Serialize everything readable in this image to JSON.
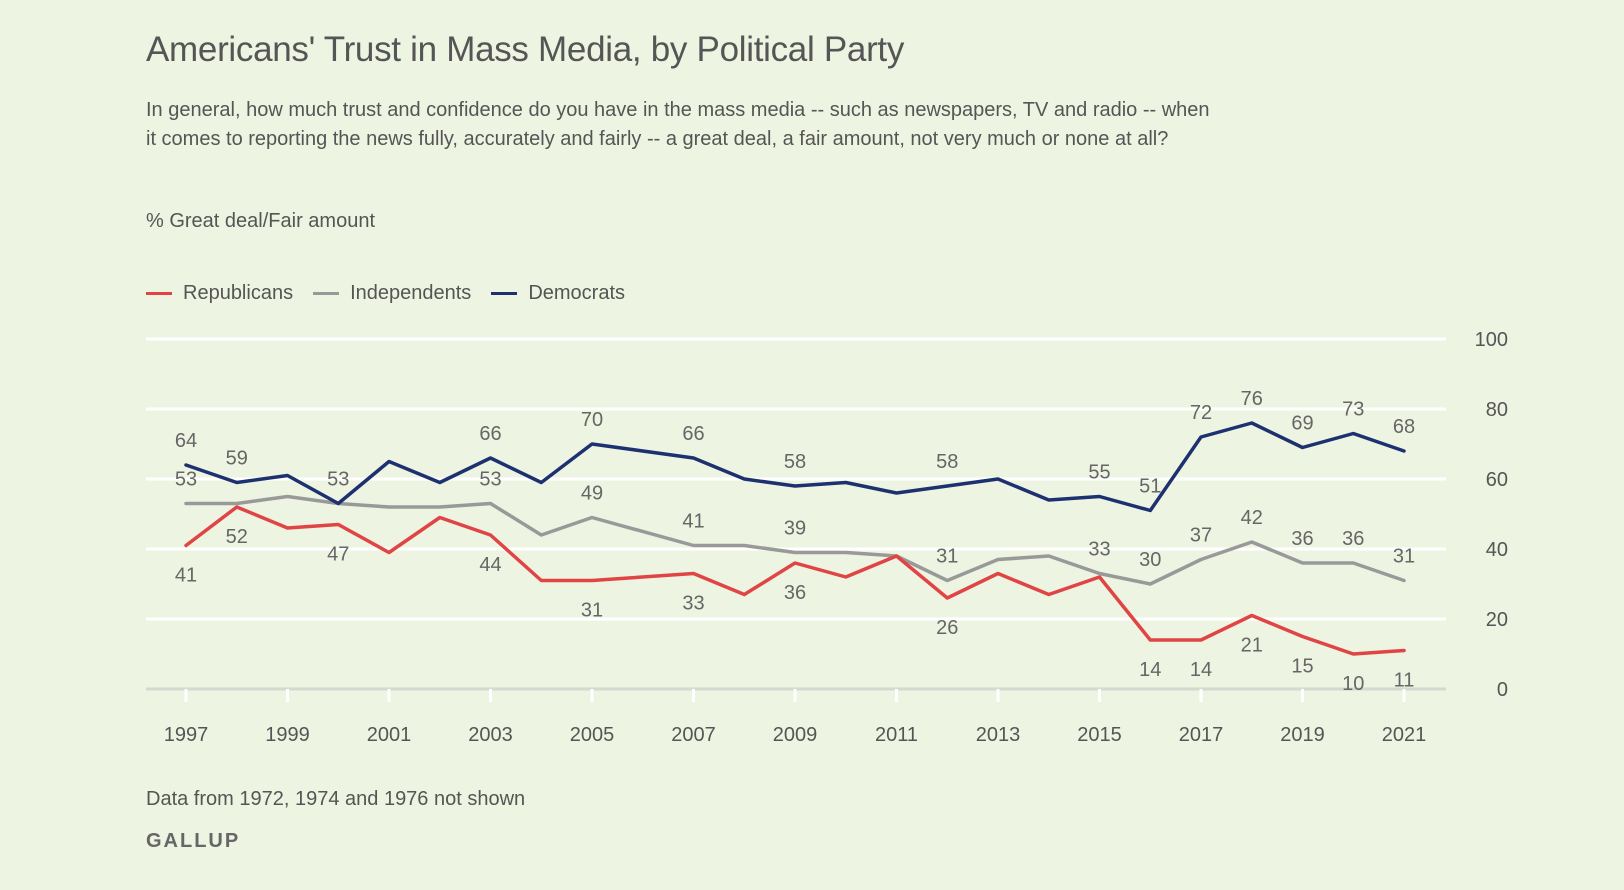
{
  "header": {
    "title": "Americans' Trust in Mass Media, by Political Party",
    "subtitle": "In general, how much trust and confidence do you have in the mass media -- such as newspapers, TV and radio -- when it comes to reporting the news fully, accurately and fairly -- a great deal, a fair amount, not very much or none at all?",
    "measure": "% Great deal/Fair amount"
  },
  "footer": {
    "note": "Data from 1972, 1974 and 1976 not shown",
    "brand": "GALLUP"
  },
  "chart_data": {
    "type": "line",
    "title": "Americans' Trust in Mass Media, by Political Party",
    "xlabel": "",
    "ylabel": "% Great deal/Fair amount",
    "x": [
      1997,
      1998,
      1999,
      2000,
      2001,
      2002,
      2003,
      2004,
      2005,
      2007,
      2008,
      2009,
      2010,
      2011,
      2012,
      2013,
      2014,
      2015,
      2016,
      2017,
      2018,
      2019,
      2020,
      2021
    ],
    "ylim": [
      0,
      100
    ],
    "yticks": [
      0,
      20,
      40,
      60,
      80,
      100
    ],
    "xticks": [
      1997,
      1999,
      2001,
      2003,
      2005,
      2007,
      2009,
      2011,
      2013,
      2015,
      2017,
      2019,
      2021
    ],
    "grid": true,
    "legend": "top-left",
    "series": [
      {
        "name": "Republicans",
        "color": "#e04444",
        "values": [
          41,
          52,
          46,
          47,
          39,
          49,
          44,
          31,
          31,
          33,
          27,
          36,
          32,
          38,
          26,
          33,
          27,
          32,
          14,
          14,
          21,
          15,
          10,
          11
        ],
        "labeled": [
          1997,
          1998,
          2000,
          2003,
          2005,
          2007,
          2009,
          2012,
          2016,
          2017,
          2018,
          2019,
          2020,
          2021
        ],
        "label_pos": "below"
      },
      {
        "name": "Independents",
        "color": "#999999",
        "values": [
          53,
          53,
          55,
          53,
          52,
          52,
          53,
          44,
          49,
          41,
          41,
          39,
          39,
          38,
          31,
          37,
          38,
          33,
          30,
          37,
          42,
          36,
          36,
          31
        ],
        "labeled": [
          1997,
          2003,
          2005,
          2007,
          2009,
          2012,
          2015,
          2016,
          2017,
          2018,
          2019,
          2020,
          2021
        ],
        "label_pos": "above"
      },
      {
        "name": "Democrats",
        "color": "#1d3170",
        "values": [
          64,
          59,
          61,
          53,
          65,
          59,
          66,
          59,
          70,
          66,
          60,
          58,
          59,
          56,
          58,
          60,
          54,
          55,
          51,
          72,
          76,
          69,
          73,
          68
        ],
        "labeled": [
          1997,
          1998,
          2000,
          2003,
          2005,
          2007,
          2009,
          2012,
          2015,
          2016,
          2017,
          2018,
          2019,
          2020,
          2021
        ],
        "label_pos": "above"
      }
    ]
  }
}
